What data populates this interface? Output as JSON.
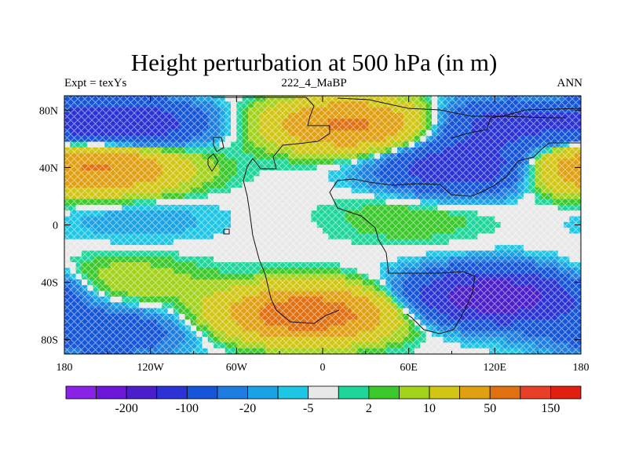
{
  "header": {
    "title": "Height perturbation at 500 hPa (in m)",
    "left": "Expt = texYs",
    "center": "222_4_MaBP",
    "right": "ANN"
  },
  "chart_data": {
    "type": "heatmap",
    "title": "Height perturbation at 500 hPa (in m)",
    "x": {
      "range": [
        -180,
        180
      ],
      "ticks": [
        -180,
        -120,
        -60,
        0,
        60,
        120,
        180
      ],
      "tick_labels": [
        "180",
        "120W",
        "60W",
        "0",
        "60E",
        "120E",
        "180"
      ]
    },
    "y": {
      "range": [
        -90,
        90
      ],
      "ticks": [
        80,
        40,
        0,
        -40,
        -80
      ],
      "tick_labels": [
        "80N",
        "40N",
        "0",
        "40S",
        "80S"
      ]
    },
    "colorbar": {
      "colors": [
        "#8a21e6",
        "#6e16d8",
        "#4a1ec9",
        "#2b32d6",
        "#1555da",
        "#1e7de0",
        "#1aa3e4",
        "#1ec6e6",
        "#e8e8e8",
        "#1ed69a",
        "#3ac82a",
        "#a2d21a",
        "#d2c614",
        "#e0a012",
        "#e07010",
        "#e84028",
        "#e01f10"
      ],
      "labels": [
        "-200",
        "-100",
        "-20",
        "-5",
        "2",
        "10",
        "50",
        "150"
      ]
    },
    "anomaly_regions": [
      {
        "lon": -140,
        "lat": 70,
        "value": -90
      },
      {
        "lon": 20,
        "lat": 70,
        "value": 110
      },
      {
        "lon": 120,
        "lat": 70,
        "value": -60
      },
      {
        "lon": -150,
        "lat": 40,
        "value": 80
      },
      {
        "lon": 100,
        "lat": 40,
        "value": -90
      },
      {
        "lon": 175,
        "lat": 40,
        "value": 40
      },
      {
        "lon": -130,
        "lat": 5,
        "value": -10
      },
      {
        "lon": 60,
        "lat": 5,
        "value": 10
      },
      {
        "lon": -140,
        "lat": -40,
        "value": 20
      },
      {
        "lon": -10,
        "lat": -62,
        "value": 150
      },
      {
        "lon": 120,
        "lat": -50,
        "value": -150
      },
      {
        "lon": -150,
        "lat": -75,
        "value": -40
      }
    ]
  }
}
